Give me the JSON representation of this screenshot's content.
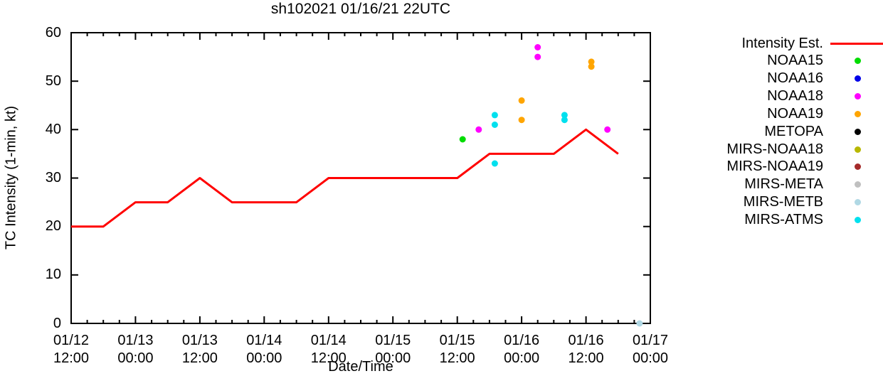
{
  "chart_data": {
    "type": "line+scatter",
    "title": "sh102021 01/16/21 22UTC",
    "xlabel": "Date/Time",
    "ylabel": "TC Intensity (1-min, kt)",
    "ylim": [
      0,
      60
    ],
    "y_ticks": [
      0,
      10,
      20,
      30,
      40,
      50,
      60
    ],
    "x_start": "01/12 12:00",
    "x_end": "01/17 00:00",
    "x_total_hours": 108,
    "x_major_tick_hours": 12,
    "x_minor_tick_hours": 3,
    "x_ticks": [
      {
        "date": "01/12",
        "time": "12:00"
      },
      {
        "date": "01/13",
        "time": "00:00"
      },
      {
        "date": "01/13",
        "time": "12:00"
      },
      {
        "date": "01/14",
        "time": "00:00"
      },
      {
        "date": "01/14",
        "time": "12:00"
      },
      {
        "date": "01/15",
        "time": "00:00"
      },
      {
        "date": "01/15",
        "time": "12:00"
      },
      {
        "date": "01/16",
        "time": "00:00"
      },
      {
        "date": "01/16",
        "time": "12:00"
      },
      {
        "date": "01/17",
        "time": "00:00"
      }
    ],
    "grid": false,
    "legend_position": "right-outside",
    "series": [
      {
        "name": "Intensity Est.",
        "type": "line",
        "color": "#ff0000",
        "points": [
          [
            "01/12 12:00",
            20
          ],
          [
            "01/12 18:00",
            20
          ],
          [
            "01/13 00:00",
            25
          ],
          [
            "01/13 06:00",
            25
          ],
          [
            "01/13 12:00",
            30
          ],
          [
            "01/13 18:00",
            25
          ],
          [
            "01/14 06:00",
            25
          ],
          [
            "01/14 12:00",
            30
          ],
          [
            "01/15 12:00",
            30
          ],
          [
            "01/15 18:00",
            35
          ],
          [
            "01/16 06:00",
            35
          ],
          [
            "01/16 12:00",
            40
          ],
          [
            "01/16 18:00",
            35
          ]
        ]
      },
      {
        "name": "NOAA15",
        "type": "scatter",
        "color": "#00dc00",
        "points": [
          [
            "01/15 13:00",
            38
          ]
        ]
      },
      {
        "name": "NOAA16",
        "type": "scatter",
        "color": "#0000e8",
        "points": []
      },
      {
        "name": "NOAA18",
        "type": "scatter",
        "color": "#ff00ff",
        "points": [
          [
            "01/15 16:00",
            40
          ],
          [
            "01/16 03:00",
            57
          ],
          [
            "01/16 03:00",
            55
          ],
          [
            "01/16 16:00",
            40
          ]
        ]
      },
      {
        "name": "NOAA19",
        "type": "scatter",
        "color": "#ffa500",
        "points": [
          [
            "01/16 00:00",
            46
          ],
          [
            "01/16 00:00",
            42
          ],
          [
            "01/16 13:00",
            54
          ],
          [
            "01/16 13:00",
            53
          ]
        ]
      },
      {
        "name": "METOPA",
        "type": "scatter",
        "color": "#000000",
        "points": []
      },
      {
        "name": "MIRS-NOAA18",
        "type": "scatter",
        "color": "#b8b800",
        "points": []
      },
      {
        "name": "MIRS-NOAA19",
        "type": "scatter",
        "color": "#a52a2a",
        "points": []
      },
      {
        "name": "MIRS-META",
        "type": "scatter",
        "color": "#c0c0c0",
        "points": []
      },
      {
        "name": "MIRS-METB",
        "type": "scatter",
        "color": "#b0d8e4",
        "points": [
          [
            "01/16 22:00",
            0
          ]
        ]
      },
      {
        "name": "MIRS-ATMS",
        "type": "scatter",
        "color": "#00e0ee",
        "points": [
          [
            "01/15 19:00",
            43
          ],
          [
            "01/15 19:00",
            41
          ],
          [
            "01/15 19:00",
            33
          ],
          [
            "01/16 08:00",
            43
          ],
          [
            "01/16 08:00",
            42
          ]
        ]
      }
    ]
  }
}
